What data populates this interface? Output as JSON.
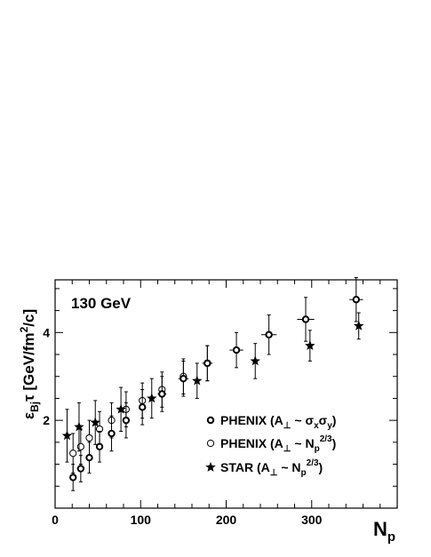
{
  "chart_data": {
    "type": "scatter",
    "annotation": "130 GeV",
    "xlabel": {
      "main": "N",
      "sub": "p"
    },
    "ylabel": "ε_Bj τ [GeV/fm²/c]",
    "xlim": [
      0,
      400
    ],
    "ylim": [
      0,
      5.2
    ],
    "x_ticks": [
      0,
      100,
      200,
      300
    ],
    "y_ticks": [
      2,
      4
    ],
    "legend_position": "bottom-right",
    "series": [
      {
        "name": "PHENIX (A⊥~ σxσy)",
        "name_parts": {
          "pre": "PHENIX (A",
          "sub1": "⊥",
          "mid": " ~ σ",
          "sub2": "x",
          "mid2": "σ",
          "sub3": "y",
          "post": ")"
        },
        "marker": "circle-bold",
        "points": [
          {
            "x": 21,
            "y": 0.7,
            "xerr": 2,
            "yerr": 0.3
          },
          {
            "x": 30,
            "y": 0.9,
            "xerr": 2,
            "yerr": 0.3
          },
          {
            "x": 40,
            "y": 1.15,
            "xerr": 2,
            "yerr": 0.35
          },
          {
            "x": 52,
            "y": 1.4,
            "xerr": 3,
            "yerr": 0.35
          },
          {
            "x": 66,
            "y": 1.7,
            "xerr": 3,
            "yerr": 0.4
          },
          {
            "x": 83,
            "y": 2.0,
            "xerr": 4,
            "yerr": 0.4
          },
          {
            "x": 102,
            "y": 2.3,
            "xerr": 4,
            "yerr": 0.4
          },
          {
            "x": 125,
            "y": 2.6,
            "xerr": 5,
            "yerr": 0.4
          },
          {
            "x": 150,
            "y": 2.95,
            "xerr": 6,
            "yerr": 0.4
          },
          {
            "x": 178,
            "y": 3.3,
            "xerr": 6,
            "yerr": 0.4
          },
          {
            "x": 212,
            "y": 3.6,
            "xerr": 8,
            "yerr": 0.4
          },
          {
            "x": 250,
            "y": 3.95,
            "xerr": 9,
            "yerr": 0.45
          },
          {
            "x": 293,
            "y": 4.3,
            "xerr": 10,
            "yerr": 0.5
          },
          {
            "x": 352,
            "y": 4.75,
            "xerr": 8,
            "yerr": 0.5
          }
        ]
      },
      {
        "name": "PHENIX (A⊥~ Np2/3)",
        "name_parts": {
          "pre": "PHENIX (A",
          "sub1": "⊥",
          "mid": " ~ N",
          "sub2": "p",
          "sup": "2/3",
          "post": ")"
        },
        "marker": "circle-open",
        "points": [
          {
            "x": 21,
            "y": 1.25,
            "yerr": 0.45
          },
          {
            "x": 30,
            "y": 1.4,
            "yerr": 0.4
          },
          {
            "x": 40,
            "y": 1.6,
            "yerr": 0.4
          },
          {
            "x": 52,
            "y": 1.8,
            "yerr": 0.4
          },
          {
            "x": 66,
            "y": 2.0,
            "yerr": 0.4
          },
          {
            "x": 83,
            "y": 2.25,
            "yerr": 0.4
          },
          {
            "x": 102,
            "y": 2.45,
            "yerr": 0.4
          },
          {
            "x": 125,
            "y": 2.7,
            "yerr": 0.4
          },
          {
            "x": 150,
            "y": 3.0,
            "yerr": 0.4
          },
          {
            "x": 178,
            "y": 3.3,
            "yerr": 0.4
          }
        ]
      },
      {
        "name": "STAR (A⊥~ Np2/3)",
        "name_parts": {
          "pre": "STAR (A",
          "sub1": "⊥",
          "mid": " ~ N",
          "sub2": "p",
          "sup": "2/3",
          "post": ")"
        },
        "marker": "star",
        "points": [
          {
            "x": 14,
            "y": 1.65,
            "yerr": 0.6
          },
          {
            "x": 28,
            "y": 1.85,
            "yerr": 0.55
          },
          {
            "x": 47,
            "y": 1.95,
            "yerr": 0.5
          },
          {
            "x": 77,
            "y": 2.25,
            "yerr": 0.5
          },
          {
            "x": 113,
            "y": 2.5,
            "yerr": 0.45
          },
          {
            "x": 166,
            "y": 2.9,
            "yerr": 0.4
          },
          {
            "x": 234,
            "y": 3.35,
            "yerr": 0.4
          },
          {
            "x": 298,
            "y": 3.7,
            "yerr": 0.35
          },
          {
            "x": 355,
            "y": 4.15,
            "yerr": 0.3
          }
        ]
      }
    ]
  }
}
